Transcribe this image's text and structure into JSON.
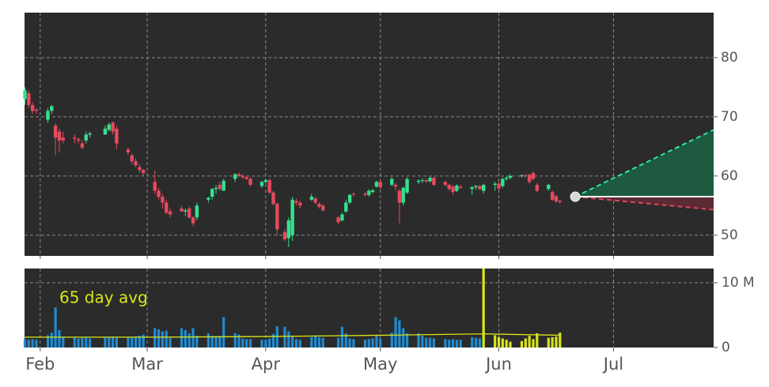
{
  "chart_data": [
    {
      "type": "candlestick",
      "xlim": [
        -4.1,
        176.2
      ],
      "ylim": [
        46.5,
        87.6
      ],
      "yticks": [
        50,
        60,
        70,
        80
      ],
      "grid": true,
      "colors": {
        "up": "#35e08f",
        "down": "#e64a5e"
      },
      "candles": {
        "x": [
          -4,
          -3,
          -2,
          -1,
          2,
          3,
          4,
          5,
          6,
          9,
          10,
          11,
          12,
          13,
          17,
          18,
          19,
          20,
          23,
          24,
          25,
          26,
          27,
          30,
          31,
          32,
          33,
          34,
          37,
          38,
          39,
          40,
          41,
          44,
          45,
          46,
          47,
          48,
          51,
          52,
          53,
          54,
          55,
          58,
          59,
          60,
          61,
          62,
          64,
          65,
          66,
          67,
          68,
          71,
          72,
          73,
          74,
          78,
          79,
          80,
          81,
          82,
          85,
          86,
          87,
          88,
          89,
          92,
          93,
          94,
          95,
          96,
          99,
          100,
          101,
          102,
          103,
          106,
          107,
          108,
          109,
          110,
          113,
          114,
          115,
          116,
          119,
          120,
          121,
          122,
          123,
          126,
          127,
          128,
          129,
          130,
          133,
          134,
          135,
          136
        ],
        "open": [
          73,
          74,
          72,
          71.2,
          69.5,
          71,
          68.5,
          67.5,
          66.5,
          66.5,
          66.2,
          65.5,
          66,
          67,
          67,
          67.8,
          69,
          68,
          64.5,
          63.5,
          62.5,
          61.5,
          61,
          59,
          57.5,
          56.5,
          55.5,
          54,
          54.5,
          54,
          54.5,
          53,
          53,
          56,
          56.5,
          57.8,
          58.5,
          57.5,
          59.5,
          60.3,
          60,
          59.8,
          59.5,
          58.3,
          59,
          59.3,
          57.2,
          55.3,
          50.5,
          49.5,
          50,
          55.8,
          55.5,
          56,
          56.2,
          55.3,
          55,
          53,
          52.5,
          54,
          55.5,
          57,
          57,
          56.8,
          57.3,
          58.2,
          59,
          58.5,
          58.5,
          57.5,
          55.5,
          57.2,
          59,
          59.2,
          59.3,
          59.1,
          59.7,
          59,
          58.5,
          58.2,
          57.5,
          58.2,
          57.8,
          58.1,
          58.3,
          57.5,
          58.5,
          58.7,
          58.3,
          59.5,
          59.7,
          60,
          60.1,
          60.2,
          60.5,
          58.5,
          57.8,
          57.3,
          56.6,
          55.8
        ],
        "high": [
          75,
          74.5,
          72.5,
          71.5,
          71.5,
          72,
          69,
          68,
          67.5,
          67,
          66.5,
          66,
          67.5,
          67.5,
          68.5,
          69,
          69.2,
          68.5,
          64.8,
          63.8,
          63,
          62,
          61.2,
          61,
          58,
          57,
          56,
          54.5,
          55,
          54.5,
          54.8,
          53.2,
          55.5,
          56.5,
          58,
          58.5,
          59,
          59.5,
          60.5,
          60.6,
          60.3,
          60,
          59.8,
          59.2,
          59.5,
          59.5,
          57.5,
          55.5,
          51,
          53,
          56.5,
          56.2,
          55.8,
          57,
          56.5,
          55.6,
          55.2,
          53.2,
          53.8,
          56,
          57,
          57.2,
          57.3,
          57.8,
          57.8,
          59.2,
          59.3,
          59.8,
          58.8,
          57.8,
          58.2,
          59.8,
          59.5,
          59.6,
          59.5,
          59.9,
          59.9,
          59.2,
          58.7,
          58.5,
          58.6,
          58.5,
          58.3,
          58.5,
          58.5,
          58.7,
          59,
          59,
          59.7,
          60,
          60.3,
          60.3,
          60.4,
          60.4,
          60.8,
          58.8,
          58.7,
          57.6,
          56.8,
          56
        ],
        "low": [
          72,
          71.5,
          70.5,
          70.5,
          69,
          70.5,
          63.5,
          64,
          65.5,
          65.5,
          65.5,
          64.5,
          65.5,
          66.5,
          67,
          67.5,
          67,
          64.5,
          63.5,
          62,
          61.5,
          60.5,
          60,
          57,
          56,
          54.5,
          53.5,
          53,
          54,
          53.2,
          52.8,
          51.5,
          52.5,
          55.5,
          56,
          57,
          57.5,
          57.5,
          59,
          59.8,
          59.5,
          59.3,
          58.3,
          58,
          58.7,
          57,
          55,
          50,
          49,
          48,
          49,
          55,
          54.5,
          55.8,
          55.2,
          54.5,
          54,
          51.8,
          52.3,
          53.8,
          55.3,
          56.5,
          56.5,
          56.5,
          57,
          58,
          57.8,
          58.3,
          57.5,
          52,
          55,
          57,
          58.6,
          58.8,
          58.8,
          58.9,
          58.3,
          58.2,
          57.5,
          56.8,
          57.3,
          57.8,
          56.8,
          57.7,
          57.6,
          57,
          57.5,
          57.6,
          58,
          59.2,
          59.4,
          59.7,
          59.7,
          58.7,
          59.3,
          57.3,
          57.5,
          55.8,
          55.5,
          55.3
        ],
        "close": [
          74.5,
          72,
          71,
          71,
          71,
          71.8,
          66.5,
          66,
          66,
          66.3,
          66,
          64.8,
          67,
          67.2,
          68,
          68.7,
          67.5,
          65.5,
          64,
          62.5,
          61.8,
          61,
          60.5,
          57.5,
          56.5,
          55.5,
          53.8,
          53.5,
          54,
          54.2,
          53,
          52,
          55,
          56.3,
          57.8,
          58,
          57.8,
          59.2,
          60.3,
          60,
          59.8,
          59.5,
          58.5,
          59,
          59.3,
          57.2,
          55.3,
          51,
          49.3,
          52.5,
          56,
          55.5,
          55,
          56.5,
          55.5,
          54.8,
          54.2,
          52.2,
          53.5,
          55.5,
          56.8,
          56.9,
          56.8,
          57.5,
          57.6,
          59,
          58.1,
          59.5,
          58.2,
          55.5,
          58,
          59.5,
          59.2,
          59.3,
          59.1,
          59.7,
          58.5,
          58.5,
          57.8,
          57.3,
          58.4,
          58,
          58.1,
          58.3,
          57.8,
          58.5,
          58.7,
          57.9,
          59.5,
          59.7,
          60,
          60.1,
          60,
          59,
          59.5,
          57.5,
          58.5,
          56,
          55.7,
          55.6
        ]
      },
      "forecast": {
        "x": [
          140,
          176.2
        ],
        "upper": [
          56.5,
          67.8
        ],
        "lower": [
          56.5,
          54.3
        ],
        "flat": [
          56.5,
          56.5
        ],
        "colors": {
          "upper": "#2fe6a2",
          "lower": "#e2445c",
          "flat": "#ffffff",
          "upper_fill": "#1d5a3f",
          "lower_fill": "#5b2a34",
          "point": "#d6d6d6"
        }
      }
    },
    {
      "type": "bar",
      "xlim": [
        -4.1,
        176.2
      ],
      "xticks": [
        {
          "value": 0,
          "label": "Feb"
        },
        {
          "value": 28,
          "label": "Mar"
        },
        {
          "value": 59,
          "label": "Apr"
        },
        {
          "value": 89,
          "label": "May"
        },
        {
          "value": 120,
          "label": "Jun"
        },
        {
          "value": 150,
          "label": "Jul"
        }
      ],
      "ylim": [
        0,
        12.2
      ],
      "yticks": [
        0,
        {
          "value": 10,
          "label": "10 M"
        }
      ],
      "grid": true,
      "series": [
        {
          "color": "#1f8bd0",
          "x": [
            -4,
            -3,
            -2,
            -1,
            2,
            3,
            4,
            5,
            6,
            9,
            10,
            11,
            12,
            13,
            17,
            18,
            19,
            20,
            23,
            24,
            25,
            26,
            27,
            30,
            31,
            32,
            33,
            34,
            37,
            38,
            39,
            40,
            41,
            44,
            45,
            46,
            47,
            48,
            51,
            52,
            53,
            54,
            55,
            58,
            59,
            60,
            61,
            62,
            64,
            65,
            66,
            67,
            68,
            71,
            72,
            73,
            74,
            78,
            79,
            80,
            81,
            82,
            85,
            86,
            87,
            88,
            89,
            92,
            93,
            94,
            95,
            96,
            99,
            100,
            101,
            102,
            103,
            106,
            107,
            108,
            109,
            110,
            113,
            114,
            115
          ],
          "values": [
            1.3,
            1.2,
            1.3,
            1.2,
            1.9,
            2.3,
            6.2,
            2.7,
            1.6,
            1.5,
            1.4,
            1.5,
            1.6,
            1.4,
            1.5,
            1.6,
            1.7,
            1.5,
            1.6,
            1.5,
            1.7,
            1.8,
            2.0,
            3.0,
            2.8,
            2.5,
            2.6,
            1.5,
            3.0,
            2.7,
            2.2,
            3.0,
            1.8,
            2.2,
            1.8,
            1.7,
            1.8,
            4.7,
            2.2,
            2.0,
            1.4,
            1.3,
            1.3,
            1.2,
            1.2,
            1.4,
            2.1,
            3.3,
            3.2,
            2.5,
            1.8,
            1.3,
            1.2,
            1.6,
            1.7,
            1.6,
            1.5,
            1.5,
            3.2,
            2.2,
            1.4,
            1.3,
            1.2,
            1.3,
            1.4,
            1.8,
            1.4,
            2.3,
            4.7,
            4.2,
            3.0,
            2.2,
            2.2,
            1.8,
            1.5,
            1.5,
            1.4,
            1.3,
            1.2,
            1.3,
            1.2,
            1.2,
            1.6,
            1.5,
            1.4
          ]
        },
        {
          "color": "#d8e619",
          "x": [
            116,
            119,
            120,
            121,
            122,
            123,
            126,
            127,
            128,
            129,
            130,
            133,
            134,
            135,
            136
          ],
          "values": [
            12.2,
            1.9,
            1.6,
            1.4,
            1.2,
            0.9,
            1.0,
            1.4,
            1.8,
            1.3,
            2.2,
            1.5,
            1.6,
            1.7,
            2.3
          ]
        }
      ],
      "average": {
        "label": "65 day avg",
        "color": "#d8e619",
        "x": [
          -4,
          30,
          60,
          90,
          116,
          136
        ],
        "values": [
          1.6,
          1.6,
          1.7,
          1.9,
          2.1,
          1.9
        ]
      }
    }
  ]
}
